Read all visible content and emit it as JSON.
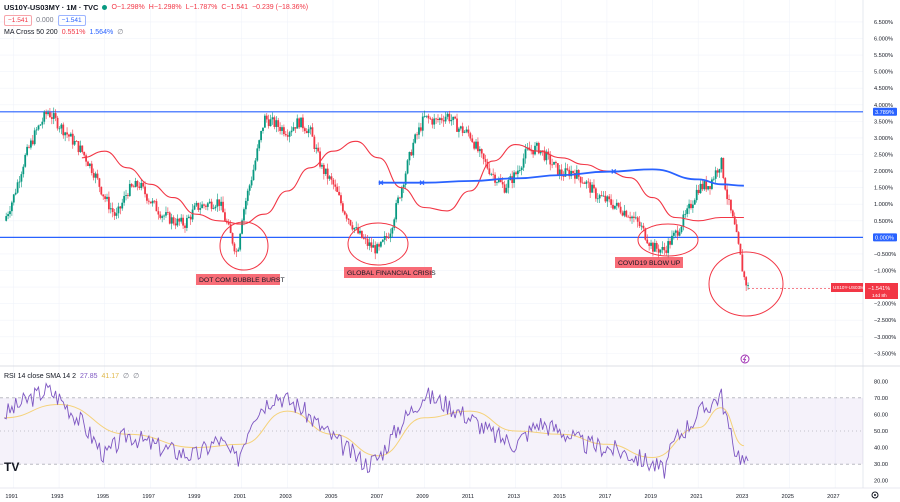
{
  "header": {
    "symbol": "US10Y-US03MY · 1M · TVC",
    "open": "O−1.298%",
    "high": "H−1.298%",
    "low": "L−1.787%",
    "close": "C−1.541",
    "change": "−0.239 (−18.36%)",
    "price_box_1": "−1.541",
    "price_box_2": "0.000",
    "price_box_3": "−1.541"
  },
  "ma_legend": {
    "label": "MA Cross 50 200",
    "v1": "0.551%",
    "v2": "1.564%",
    "v3": "∅"
  },
  "rsi_legend": {
    "label": "RSI 14 close SMA 14 2",
    "v1": "27.85",
    "v2": "41.17",
    "v3": "∅",
    "v4": "∅"
  },
  "price_tag": {
    "symbol": "US10Y-US03MY",
    "value": "−1.541%",
    "countdown": "14d 8h"
  },
  "level_tags": {
    "top": "3.789%",
    "zero": "0.000%"
  },
  "annotations": {
    "dotcom": "DOT COM BUBBLE BURST",
    "gfc": "GLOBAL FINANCIAL CRISIS",
    "covid": "COVID19 BLOW UP"
  },
  "logo": "TV",
  "colors": {
    "up": "#089981",
    "down": "#f23645",
    "ma50": "#f23645",
    "ma200": "#2962ff",
    "rsi": "#7e57c2",
    "rsi_ma": "#f5d27a",
    "level": "#2962ff"
  },
  "chart_data": [
    {
      "type": "line",
      "title": "US10Y-US03MY · 1M · TVC",
      "x_ticks": [
        "1991",
        "1993",
        "1995",
        "1997",
        "1999",
        "2001",
        "2003",
        "2005",
        "2007",
        "2009",
        "2011",
        "2013",
        "2015",
        "2017",
        "2019",
        "2021",
        "2023",
        "2025",
        "2027"
      ],
      "y_ticks": [
        "6.500%",
        "6.000%",
        "5.500%",
        "5.000%",
        "4.500%",
        "4.000%",
        "3.500%",
        "3.000%",
        "2.500%",
        "2.000%",
        "1.500%",
        "1.000%",
        "0.500%",
        "0.000%",
        "−0.500%",
        "−1.000%",
        "−1.500%",
        "−2.000%",
        "−2.500%",
        "−3.000%",
        "−3.500%"
      ],
      "ylim": [
        -3.7,
        6.8
      ],
      "xlim": [
        1990.5,
        2028.0
      ],
      "horizontal_levels": [
        3.789,
        0.0
      ],
      "series": [
        {
          "name": "US10Y-US03MY",
          "x": [
            1990.6,
            1991.0,
            1991.5,
            1992.0,
            1992.5,
            1993.0,
            1993.5,
            1994.0,
            1994.5,
            1995.0,
            1995.5,
            1996.0,
            1996.5,
            1997.0,
            1997.5,
            1998.0,
            1998.5,
            1999.0,
            1999.5,
            2000.0,
            2000.5,
            2000.8,
            2001.0,
            2001.5,
            2002.0,
            2002.5,
            2003.0,
            2003.5,
            2004.0,
            2004.5,
            2005.0,
            2005.5,
            2006.0,
            2006.5,
            2007.0,
            2007.5,
            2008.0,
            2008.5,
            2009.0,
            2009.5,
            2010.0,
            2010.5,
            2011.0,
            2011.5,
            2012.0,
            2012.5,
            2013.0,
            2013.5,
            2014.0,
            2014.5,
            2015.0,
            2015.5,
            2016.0,
            2016.5,
            2017.0,
            2017.5,
            2018.0,
            2018.5,
            2019.0,
            2019.5,
            2020.0,
            2020.5,
            2021.0,
            2021.5,
            2022.0,
            2022.3,
            2022.6,
            2022.9,
            2023.0,
            2023.2
          ],
          "values": [
            0.5,
            1.2,
            2.4,
            3.2,
            3.8,
            3.4,
            3.0,
            2.6,
            2.0,
            1.2,
            0.6,
            1.4,
            1.6,
            1.1,
            0.7,
            0.5,
            0.4,
            0.9,
            1.0,
            1.1,
            0.1,
            -0.5,
            0.6,
            2.0,
            3.6,
            3.4,
            3.2,
            3.5,
            3.2,
            2.1,
            1.6,
            0.8,
            0.2,
            -0.2,
            -0.4,
            0.2,
            1.5,
            2.8,
            3.6,
            3.5,
            3.7,
            3.3,
            3.1,
            2.4,
            1.9,
            1.5,
            1.9,
            2.6,
            2.7,
            2.3,
            1.9,
            2.0,
            1.7,
            1.3,
            1.1,
            0.9,
            0.7,
            0.3,
            -0.3,
            -0.4,
            0.1,
            0.7,
            1.5,
            1.6,
            2.3,
            1.1,
            0.3,
            -0.8,
            -1.2,
            -1.54
          ]
        },
        {
          "name": "MA 50",
          "x": [
            1994.0,
            1995.0,
            1996.0,
            1997.0,
            1998.0,
            1999.0,
            2000.0,
            2001.0,
            2002.0,
            2003.0,
            2004.0,
            2005.0,
            2006.0,
            2007.0,
            2008.0,
            2009.0,
            2010.0,
            2011.0,
            2012.0,
            2013.0,
            2014.0,
            2015.0,
            2016.0,
            2017.0,
            2018.0,
            2019.0,
            2020.0,
            2021.0,
            2022.0,
            2023.0
          ],
          "values": [
            2.4,
            2.6,
            2.1,
            1.6,
            1.2,
            0.7,
            0.5,
            0.4,
            0.7,
            1.4,
            2.1,
            2.6,
            2.9,
            2.4,
            1.5,
            0.9,
            0.8,
            1.4,
            2.3,
            2.8,
            2.6,
            2.4,
            2.2,
            2.0,
            1.8,
            1.2,
            0.6,
            0.5,
            0.6,
            0.6
          ]
        },
        {
          "name": "MA 200",
          "x": [
            2007.0,
            2009.0,
            2011.0,
            2013.0,
            2015.0,
            2017.0,
            2019.0,
            2021.0,
            2022.0,
            2023.0
          ],
          "values": [
            1.65,
            1.65,
            1.7,
            1.78,
            1.88,
            1.98,
            2.05,
            1.75,
            1.6,
            1.56
          ]
        }
      ]
    },
    {
      "type": "line",
      "title": "RSI 14 close SMA 14 2",
      "y_ticks": [
        "80.00",
        "70.00",
        "60.00",
        "50.00",
        "40.00",
        "30.00",
        "20.00"
      ],
      "ylim": [
        18,
        82
      ],
      "band": [
        30,
        70
      ],
      "series": [
        {
          "name": "RSI",
          "x": [
            1990.6,
            1991.5,
            1992.5,
            1993.0,
            1994.0,
            1995.0,
            1996.0,
            1997.0,
            1998.0,
            1999.0,
            2000.0,
            2000.8,
            2001.5,
            2002.5,
            2003.5,
            2004.5,
            2005.5,
            2006.5,
            2007.0,
            2008.0,
            2009.0,
            2010.0,
            2011.0,
            2012.0,
            2013.0,
            2014.0,
            2015.0,
            2016.0,
            2017.0,
            2018.0,
            2019.0,
            2019.5,
            2020.0,
            2021.0,
            2021.5,
            2022.0,
            2022.5,
            2023.0,
            2023.2
          ],
          "values": [
            60,
            68,
            75,
            70,
            55,
            35,
            48,
            42,
            38,
            35,
            45,
            32,
            60,
            72,
            65,
            52,
            40,
            30,
            34,
            55,
            72,
            66,
            58,
            48,
            42,
            55,
            50,
            42,
            40,
            36,
            30,
            26,
            45,
            60,
            66,
            72,
            42,
            32,
            27.85
          ]
        },
        {
          "name": "RSI-based MA",
          "x": [
            1990.6,
            1993.0,
            1996.0,
            1999.0,
            2001.0,
            2003.0,
            2005.0,
            2007.0,
            2009.0,
            2011.0,
            2013.0,
            2015.0,
            2017.0,
            2019.0,
            2021.0,
            2022.0,
            2023.0
          ],
          "values": [
            58,
            66,
            48,
            40,
            42,
            62,
            48,
            35,
            58,
            62,
            50,
            48,
            42,
            34,
            52,
            64,
            41.17
          ]
        }
      ]
    }
  ]
}
